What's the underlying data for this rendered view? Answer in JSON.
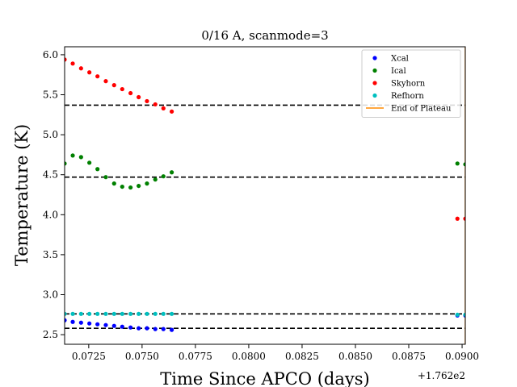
{
  "chart_data": {
    "type": "scatter",
    "title": "0/16 A, scanmode=3",
    "xlabel": "Time Since APCO (days)",
    "ylabel": "Temperature (K)",
    "x_offset_label": "+1.762e2",
    "xlim": [
      0.07137,
      0.09015
    ],
    "ylim": [
      2.38,
      6.1
    ],
    "xticks": [
      0.0725,
      0.075,
      0.0775,
      0.08,
      0.0825,
      0.085,
      0.0875,
      0.09
    ],
    "xtick_labels": [
      "0.0725",
      "0.0750",
      "0.0775",
      "0.0800",
      "0.0825",
      "0.0850",
      "0.0875",
      "0.0900"
    ],
    "yticks": [
      2.5,
      3.0,
      3.5,
      4.0,
      4.5,
      5.0,
      5.5,
      6.0
    ],
    "ytick_labels": [
      "2.5",
      "3.0",
      "3.5",
      "4.0",
      "4.5",
      "5.0",
      "5.5",
      "6.0"
    ],
    "legend_position": "top-right",
    "series": [
      {
        "name": "Xcal",
        "color": "#0000ff",
        "x": [
          0.07137,
          0.07175,
          0.07214,
          0.07253,
          0.07291,
          0.0733,
          0.07369,
          0.07407,
          0.07446,
          0.07484,
          0.07523,
          0.07562,
          0.076,
          0.07639,
          0.08978,
          0.09015
        ],
        "y": [
          2.68,
          2.66,
          2.65,
          2.64,
          2.63,
          2.62,
          2.61,
          2.6,
          2.59,
          2.58,
          2.58,
          2.57,
          2.57,
          2.56,
          2.74,
          2.74
        ]
      },
      {
        "name": "Ical",
        "color": "#008000",
        "x": [
          0.07137,
          0.07175,
          0.07214,
          0.07253,
          0.07291,
          0.0733,
          0.07369,
          0.07407,
          0.07446,
          0.07484,
          0.07523,
          0.07562,
          0.076,
          0.07639,
          0.08978,
          0.09015
        ],
        "y": [
          4.64,
          4.74,
          4.72,
          4.65,
          4.57,
          4.47,
          4.39,
          4.35,
          4.34,
          4.36,
          4.39,
          4.44,
          4.48,
          4.53,
          4.64,
          4.63
        ]
      },
      {
        "name": "Skyhorn",
        "color": "#ff0000",
        "x": [
          0.07137,
          0.07175,
          0.07214,
          0.07253,
          0.07291,
          0.0733,
          0.07369,
          0.07407,
          0.07446,
          0.07484,
          0.07523,
          0.07562,
          0.076,
          0.07639,
          0.08978,
          0.09015
        ],
        "y": [
          5.94,
          5.89,
          5.83,
          5.78,
          5.73,
          5.67,
          5.62,
          5.57,
          5.52,
          5.47,
          5.42,
          5.38,
          5.33,
          5.29,
          3.95,
          3.95
        ]
      },
      {
        "name": "Refhorn",
        "color": "#00bfbf",
        "x": [
          0.07137,
          0.07175,
          0.07214,
          0.07253,
          0.07291,
          0.0733,
          0.07369,
          0.07407,
          0.07446,
          0.07484,
          0.07523,
          0.07562,
          0.076,
          0.07639,
          0.08978,
          0.09015
        ],
        "y": [
          2.76,
          2.76,
          2.76,
          2.76,
          2.76,
          2.76,
          2.76,
          2.76,
          2.76,
          2.76,
          2.76,
          2.76,
          2.76,
          2.76,
          2.75,
          2.75
        ]
      }
    ],
    "vertical_lines": [
      {
        "name": "End of Plateau",
        "color": "#ff8c00",
        "x": 0.09015
      }
    ],
    "reference_lines": [
      {
        "y": 5.37,
        "color": "#000000",
        "style": "dashed"
      },
      {
        "y": 4.47,
        "color": "#000000",
        "style": "dashed"
      },
      {
        "y": 2.76,
        "color": "#000000",
        "style": "dashed"
      },
      {
        "y": 2.58,
        "color": "#000000",
        "style": "dashed"
      }
    ]
  }
}
